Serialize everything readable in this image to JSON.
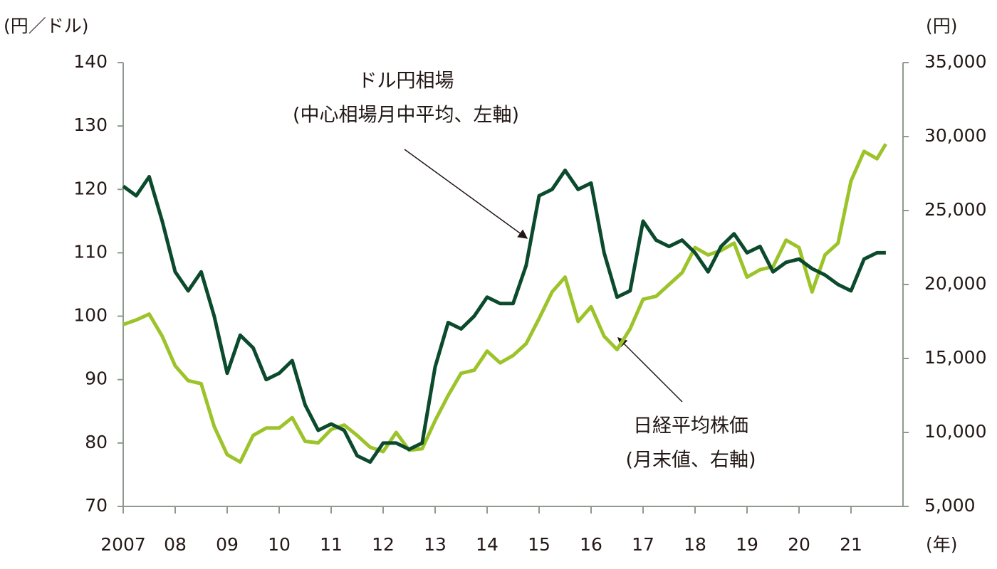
{
  "chart_data": {
    "type": "line",
    "y_label": "(円／ドル)",
    "y2_label": "(円)",
    "x_label": "(年)",
    "annotations": [
      {
        "lines": [
          "ドル円相場",
          "(中心相場月中平均、左軸)"
        ]
      },
      {
        "lines": [
          "日経平均株価",
          "(月末値、右軸)"
        ]
      }
    ],
    "x": [
      2007,
      2007.25,
      2007.5,
      2007.75,
      2008,
      2008.25,
      2008.5,
      2008.75,
      2009,
      2009.25,
      2009.5,
      2009.75,
      2010,
      2010.25,
      2010.5,
      2010.75,
      2011,
      2011.25,
      2011.5,
      2011.75,
      2012,
      2012.25,
      2012.5,
      2012.75,
      2013,
      2013.25,
      2013.5,
      2013.75,
      2014,
      2014.25,
      2014.5,
      2014.75,
      2015,
      2015.25,
      2015.5,
      2015.75,
      2016,
      2016.25,
      2016.5,
      2016.75,
      2017,
      2017.25,
      2017.5,
      2017.75,
      2018,
      2018.25,
      2018.5,
      2018.75,
      2019,
      2019.25,
      2019.5,
      2019.75,
      2020,
      2020.25,
      2020.5,
      2020.75,
      2021,
      2021.25,
      2021.5,
      2021.67
    ],
    "series": [
      {
        "name": "ドル円相場",
        "color": "#0b4a2c",
        "values": [
          120.5,
          119,
          122,
          115,
          107,
          104,
          107,
          100,
          91,
          97,
          95,
          90,
          91,
          93,
          86,
          82,
          83,
          82,
          78,
          77,
          80,
          80,
          79,
          80,
          92,
          99,
          98,
          100,
          103,
          102,
          102,
          108,
          119,
          120,
          123,
          120,
          121,
          110,
          103,
          104,
          115,
          112,
          111,
          112,
          110,
          107,
          111,
          113,
          110,
          111,
          107,
          108.5,
          109,
          107.5,
          106.5,
          105,
          104,
          109,
          110,
          110
        ]
      },
      {
        "name": "日経平均株価",
        "color": "#9cc42a",
        "axis": "y2",
        "values": [
          17300,
          17600,
          18000,
          16500,
          14500,
          13500,
          13300,
          10400,
          8500,
          8000,
          9800,
          10300,
          10300,
          11000,
          9400,
          9300,
          10200,
          10500,
          9800,
          9000,
          8700,
          10000,
          8800,
          8900,
          10800,
          12500,
          14000,
          14200,
          15500,
          14700,
          15200,
          16000,
          17700,
          19500,
          20500,
          17500,
          18500,
          16500,
          15600,
          17000,
          19000,
          19200,
          20000,
          20800,
          22500,
          22000,
          22300,
          22800,
          20500,
          21000,
          21200,
          23000,
          22500,
          19500,
          22000,
          22800,
          27000,
          29000,
          28500,
          29500
        ]
      }
    ],
    "xlim": [
      2007,
      2022
    ],
    "xticks": [
      {
        "value": 2007,
        "label": "2007"
      },
      {
        "value": 2008,
        "label": "08"
      },
      {
        "value": 2009,
        "label": "09"
      },
      {
        "value": 2010,
        "label": "10"
      },
      {
        "value": 2011,
        "label": "11"
      },
      {
        "value": 2012,
        "label": "12"
      },
      {
        "value": 2013,
        "label": "13"
      },
      {
        "value": 2014,
        "label": "14"
      },
      {
        "value": 2015,
        "label": "15"
      },
      {
        "value": 2016,
        "label": "16"
      },
      {
        "value": 2017,
        "label": "17"
      },
      {
        "value": 2018,
        "label": "18"
      },
      {
        "value": 2019,
        "label": "19"
      },
      {
        "value": 2020,
        "label": "20"
      },
      {
        "value": 2021,
        "label": "21"
      }
    ],
    "ylim": [
      70,
      140
    ],
    "yticks": [
      70,
      80,
      90,
      100,
      110,
      120,
      130,
      140
    ],
    "y2lim": [
      5000,
      35000
    ],
    "y2ticks": [
      {
        "value": 5000,
        "label": "5,000"
      },
      {
        "value": 10000,
        "label": "10,000"
      },
      {
        "value": 15000,
        "label": "15,000"
      },
      {
        "value": 20000,
        "label": "20,000"
      },
      {
        "value": 25000,
        "label": "25,000"
      },
      {
        "value": 30000,
        "label": "30,000"
      },
      {
        "value": 35000,
        "label": "35,000"
      }
    ]
  }
}
